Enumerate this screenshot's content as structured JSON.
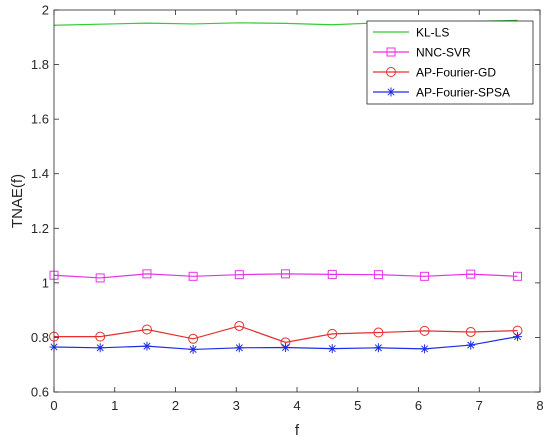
{
  "chart_data": {
    "type": "line",
    "title": "",
    "xlabel": "f",
    "ylabel": "TNAE(f)",
    "xlim": [
      0,
      8
    ],
    "ylim": [
      0.6,
      2
    ],
    "xticks": [
      0,
      1,
      2,
      3,
      4,
      5,
      6,
      7,
      8
    ],
    "yticks": [
      0.6,
      0.8,
      1,
      1.2,
      1.4,
      1.6,
      1.8,
      2
    ],
    "xtick_labels": [
      "0",
      "1",
      "2",
      "3",
      "4",
      "5",
      "6",
      "7",
      "8"
    ],
    "ytick_labels": [
      "0.6",
      "0.8",
      "1",
      "1.2",
      "1.4",
      "1.6",
      "1.8",
      "2"
    ],
    "grid": false,
    "legend_position": "top-right",
    "series": [
      {
        "name": "KL-LS",
        "color": "#33cc33",
        "marker": "none",
        "x": [
          0,
          0.76,
          1.53,
          2.29,
          3.05,
          3.81,
          4.58,
          5.34,
          6.1,
          6.86,
          7.63
        ],
        "y": [
          1.944,
          1.948,
          1.952,
          1.949,
          1.953,
          1.951,
          1.946,
          1.953,
          1.956,
          1.958,
          1.962
        ]
      },
      {
        "name": "NNC-SVR",
        "color": "#e633e6",
        "marker": "square",
        "x": [
          0,
          0.76,
          1.53,
          2.29,
          3.05,
          3.81,
          4.58,
          5.34,
          6.1,
          6.86,
          7.63
        ],
        "y": [
          1.028,
          1.018,
          1.033,
          1.024,
          1.03,
          1.033,
          1.031,
          1.03,
          1.024,
          1.032,
          1.024
        ]
      },
      {
        "name": "AP-Fourier-GD",
        "color": "#e62e2e",
        "marker": "circle",
        "x": [
          0,
          0.76,
          1.53,
          2.29,
          3.05,
          3.81,
          4.58,
          5.34,
          6.1,
          6.86,
          7.63
        ],
        "y": [
          0.803,
          0.803,
          0.829,
          0.795,
          0.842,
          0.782,
          0.813,
          0.818,
          0.824,
          0.82,
          0.825
        ]
      },
      {
        "name": "AP-Fourier-SPSA",
        "color": "#1f2ee6",
        "marker": "star",
        "x": [
          0,
          0.76,
          1.53,
          2.29,
          3.05,
          3.81,
          4.58,
          5.34,
          6.1,
          6.86,
          7.63
        ],
        "y": [
          0.765,
          0.762,
          0.768,
          0.756,
          0.762,
          0.763,
          0.759,
          0.762,
          0.758,
          0.772,
          0.803
        ]
      }
    ]
  }
}
